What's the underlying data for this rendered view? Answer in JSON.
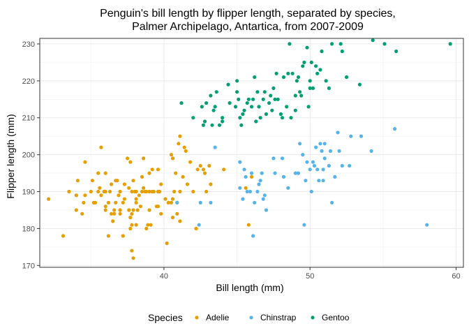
{
  "chart_data": {
    "type": "scatter",
    "title_lines": [
      "Penguin's bill length by flipper length, separated by species,",
      "Palmer Archipelago, Antartica, from 2007-2009"
    ],
    "xlabel": "Bill length (mm)",
    "ylabel": "Flipper length (mm)",
    "xlim": [
      31.5,
      60.5
    ],
    "ylim": [
      169.5,
      231.5
    ],
    "x_ticks": [
      40,
      50,
      60
    ],
    "y_ticks": [
      170,
      180,
      190,
      200,
      210,
      220,
      230
    ],
    "grid": true,
    "legend": {
      "title": "Species",
      "position": "bottom"
    },
    "series": [
      {
        "name": "Adelie",
        "color": "#E69F00",
        "points": [
          [
            32.1,
            188
          ],
          [
            33.1,
            178
          ],
          [
            33.5,
            190
          ],
          [
            34.0,
            185
          ],
          [
            34.1,
            193
          ],
          [
            34.4,
            184
          ],
          [
            34.5,
            187
          ],
          [
            34.6,
            189
          ],
          [
            34.6,
            198
          ],
          [
            35.0,
            190
          ],
          [
            35.1,
            193
          ],
          [
            35.2,
            187
          ],
          [
            35.3,
            187
          ],
          [
            35.5,
            190
          ],
          [
            35.5,
            195
          ],
          [
            35.6,
            191
          ],
          [
            35.7,
            189
          ],
          [
            35.7,
            202
          ],
          [
            35.9,
            190
          ],
          [
            36.0,
            185
          ],
          [
            36.0,
            186
          ],
          [
            36.0,
            190
          ],
          [
            36.0,
            195
          ],
          [
            36.2,
            178
          ],
          [
            36.2,
            187
          ],
          [
            36.3,
            190
          ],
          [
            36.4,
            184
          ],
          [
            36.5,
            182
          ],
          [
            36.6,
            184
          ],
          [
            36.6,
            185
          ],
          [
            36.7,
            187
          ],
          [
            36.7,
            193
          ],
          [
            36.8,
            193
          ],
          [
            36.9,
            189
          ],
          [
            37.0,
            184
          ],
          [
            37.0,
            185
          ],
          [
            37.2,
            178
          ],
          [
            37.2,
            187
          ],
          [
            37.3,
            188
          ],
          [
            37.3,
            192
          ],
          [
            37.5,
            199
          ],
          [
            37.6,
            185
          ],
          [
            37.6,
            191
          ],
          [
            37.7,
            180
          ],
          [
            37.7,
            183
          ],
          [
            37.7,
            198
          ],
          [
            37.8,
            174
          ],
          [
            37.8,
            181
          ],
          [
            37.8,
            184
          ],
          [
            37.8,
            190
          ],
          [
            37.9,
            172
          ],
          [
            37.9,
            185
          ],
          [
            37.9,
            193
          ],
          [
            38.1,
            181
          ],
          [
            38.1,
            187
          ],
          [
            38.1,
            188
          ],
          [
            38.1,
            190
          ],
          [
            38.2,
            185
          ],
          [
            38.3,
            189
          ],
          [
            38.5,
            190
          ],
          [
            38.6,
            191
          ],
          [
            38.6,
            199
          ],
          [
            38.7,
            190
          ],
          [
            38.8,
            180
          ],
          [
            38.8,
            190
          ],
          [
            38.9,
            181
          ],
          [
            39.0,
            185
          ],
          [
            39.0,
            190
          ],
          [
            39.1,
            181
          ],
          [
            39.2,
            190
          ],
          [
            39.2,
            196
          ],
          [
            39.3,
            190
          ],
          [
            39.5,
            186
          ],
          [
            39.6,
            186
          ],
          [
            39.6,
            190
          ],
          [
            39.6,
            196
          ],
          [
            39.7,
            190
          ],
          [
            39.8,
            184
          ],
          [
            40.1,
            188
          ],
          [
            40.2,
            176
          ],
          [
            40.3,
            187
          ],
          [
            40.5,
            187
          ],
          [
            40.5,
            200
          ],
          [
            40.6,
            183
          ],
          [
            40.6,
            199
          ],
          [
            40.7,
            190
          ],
          [
            40.8,
            195
          ],
          [
            40.9,
            184
          ],
          [
            40.9,
            187
          ],
          [
            41.0,
            203
          ],
          [
            41.1,
            182
          ],
          [
            41.1,
            190
          ],
          [
            41.1,
            205
          ],
          [
            41.3,
            194
          ],
          [
            41.4,
            202
          ],
          [
            41.5,
            201
          ],
          [
            41.6,
            192
          ],
          [
            41.8,
            198
          ],
          [
            42.0,
            190
          ],
          [
            42.2,
            180
          ],
          [
            42.3,
            196
          ],
          [
            42.5,
            197
          ],
          [
            42.7,
            196
          ],
          [
            42.8,
            195
          ],
          [
            42.9,
            190
          ],
          [
            43.1,
            197
          ],
          [
            43.2,
            192
          ],
          [
            44.1,
            196
          ],
          [
            45.6,
            191
          ],
          [
            45.8,
            181
          ],
          [
            46.0,
            194
          ],
          [
            39.0,
            195
          ],
          [
            40.6,
            188
          ],
          [
            37.0,
            190
          ],
          [
            34.0,
            189
          ],
          [
            38.5,
            194
          ],
          [
            39.8,
            192
          ],
          [
            38.0,
            190
          ],
          [
            36.4,
            192
          ],
          [
            38.4,
            186
          ]
        ]
      },
      {
        "name": "Chinstrap",
        "color": "#56B4E9",
        "points": [
          [
            40.9,
            187
          ],
          [
            42.4,
            181
          ],
          [
            42.5,
            187
          ],
          [
            43.2,
            187
          ],
          [
            43.5,
            202
          ],
          [
            45.2,
            191
          ],
          [
            45.2,
            198
          ],
          [
            45.4,
            188
          ],
          [
            45.5,
            196
          ],
          [
            45.6,
            194
          ],
          [
            45.7,
            190
          ],
          [
            45.9,
            190
          ],
          [
            46.0,
            195
          ],
          [
            46.1,
            178
          ],
          [
            46.2,
            187
          ],
          [
            46.4,
            190
          ],
          [
            46.5,
            192
          ],
          [
            46.6,
            193
          ],
          [
            46.7,
            195
          ],
          [
            46.8,
            188
          ],
          [
            46.9,
            189
          ],
          [
            47.0,
            185
          ],
          [
            47.5,
            199
          ],
          [
            47.6,
            195
          ],
          [
            48.1,
            199
          ],
          [
            48.5,
            191
          ],
          [
            49.0,
            195
          ],
          [
            49.2,
            195
          ],
          [
            49.3,
            203
          ],
          [
            49.5,
            200
          ],
          [
            49.6,
            181
          ],
          [
            49.7,
            193
          ],
          [
            50.0,
            196
          ],
          [
            50.1,
            190
          ],
          [
            50.2,
            198
          ],
          [
            50.3,
            197
          ],
          [
            50.5,
            196
          ],
          [
            50.6,
            193
          ],
          [
            50.7,
            203
          ],
          [
            50.8,
            201
          ],
          [
            50.9,
            196
          ],
          [
            51.0,
            203
          ],
          [
            51.3,
            197
          ],
          [
            51.4,
            201
          ],
          [
            51.5,
            187
          ],
          [
            51.7,
            194
          ],
          [
            51.9,
            206
          ],
          [
            52.0,
            201
          ],
          [
            52.2,
            197
          ],
          [
            52.7,
            197
          ],
          [
            52.8,
            205
          ],
          [
            53.5,
            205
          ],
          [
            54.2,
            201
          ],
          [
            55.8,
            207
          ],
          [
            58.0,
            181
          ],
          [
            50.4,
            202
          ],
          [
            49.8,
            198
          ],
          [
            50.9,
            193
          ],
          [
            48.2,
            194
          ],
          [
            51.0,
            199
          ]
        ]
      },
      {
        "name": "Gentoo",
        "color": "#009E73",
        "points": [
          [
            41.2,
            214
          ],
          [
            42.0,
            210
          ],
          [
            42.6,
            213
          ],
          [
            42.7,
            208
          ],
          [
            42.8,
            209
          ],
          [
            42.9,
            214
          ],
          [
            43.2,
            216
          ],
          [
            43.3,
            208
          ],
          [
            43.4,
            212
          ],
          [
            43.5,
            213
          ],
          [
            43.6,
            217
          ],
          [
            43.8,
            208
          ],
          [
            44.0,
            210
          ],
          [
            44.4,
            219
          ],
          [
            44.5,
            214
          ],
          [
            44.9,
            213
          ],
          [
            45.0,
            220
          ],
          [
            45.1,
            215
          ],
          [
            45.2,
            210
          ],
          [
            45.3,
            208
          ],
          [
            45.4,
            211
          ],
          [
            45.5,
            212
          ],
          [
            45.7,
            214
          ],
          [
            45.8,
            215
          ],
          [
            46.1,
            215
          ],
          [
            46.2,
            221
          ],
          [
            46.3,
            209
          ],
          [
            46.4,
            217
          ],
          [
            46.5,
            213
          ],
          [
            46.6,
            210
          ],
          [
            46.8,
            215
          ],
          [
            46.9,
            217
          ],
          [
            47.2,
            214
          ],
          [
            47.3,
            216
          ],
          [
            47.4,
            212
          ],
          [
            47.5,
            218
          ],
          [
            47.6,
            215
          ],
          [
            47.7,
            222
          ],
          [
            47.8,
            215
          ],
          [
            48.1,
            210
          ],
          [
            48.2,
            221
          ],
          [
            48.4,
            213
          ],
          [
            48.5,
            222
          ],
          [
            48.6,
            230
          ],
          [
            48.7,
            210
          ],
          [
            48.8,
            222
          ],
          [
            49.0,
            216
          ],
          [
            49.1,
            220
          ],
          [
            49.2,
            221
          ],
          [
            49.3,
            217
          ],
          [
            49.4,
            216
          ],
          [
            49.5,
            224
          ],
          [
            49.6,
            225
          ],
          [
            49.8,
            229
          ],
          [
            49.9,
            213
          ],
          [
            50.0,
            220
          ],
          [
            50.1,
            225
          ],
          [
            50.2,
            218
          ],
          [
            50.4,
            224
          ],
          [
            50.5,
            222
          ],
          [
            50.7,
            223
          ],
          [
            50.8,
            228
          ],
          [
            51.1,
            220
          ],
          [
            51.3,
            218
          ],
          [
            51.5,
            230
          ],
          [
            52.1,
            230
          ],
          [
            52.2,
            228
          ],
          [
            52.5,
            221
          ],
          [
            53.4,
            219
          ],
          [
            54.3,
            231
          ],
          [
            55.1,
            230
          ],
          [
            55.9,
            228
          ],
          [
            59.6,
            230
          ],
          [
            44.0,
            209
          ],
          [
            45.0,
            217
          ],
          [
            46.0,
            213
          ],
          [
            47.0,
            211
          ],
          [
            48.0,
            211
          ],
          [
            49.0,
            212
          ],
          [
            50.0,
            218
          ]
        ]
      }
    ]
  }
}
